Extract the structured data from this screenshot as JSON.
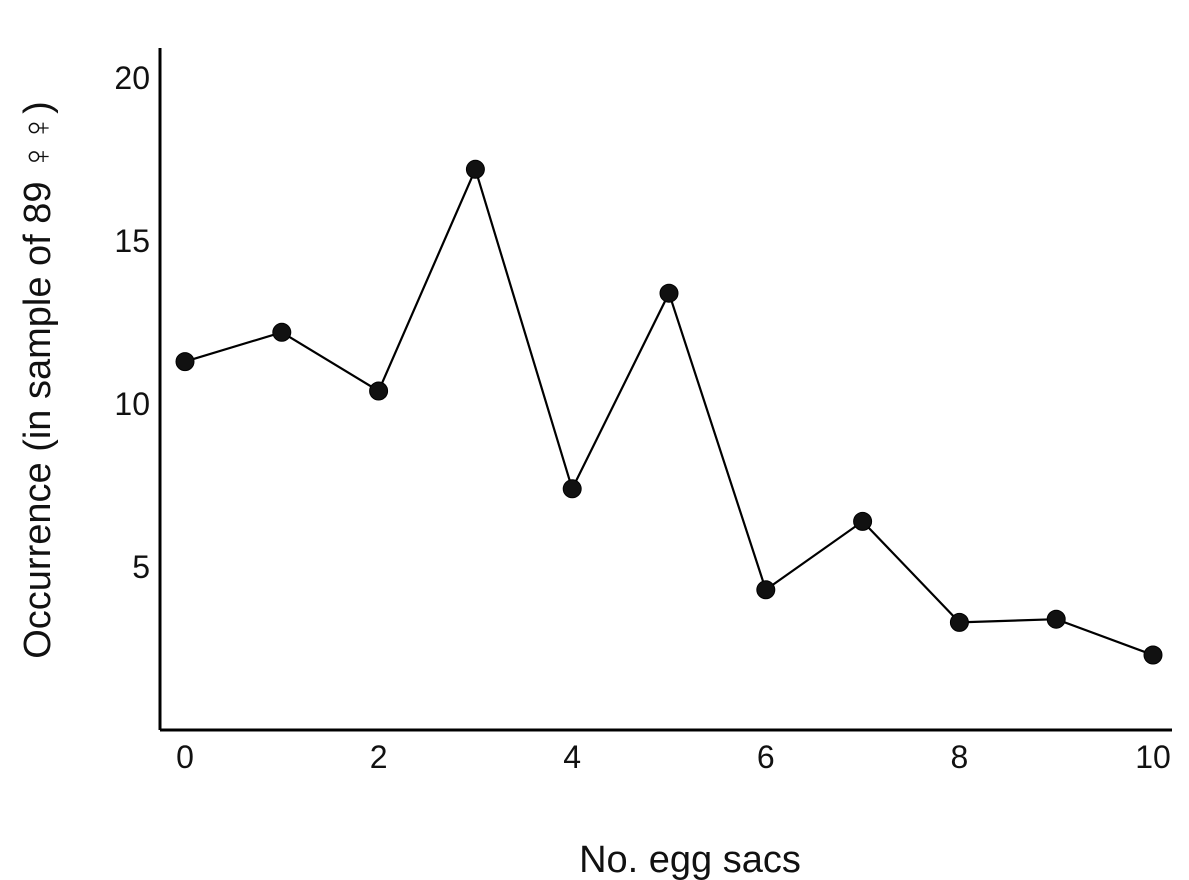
{
  "chart_data": {
    "type": "line",
    "xlabel": "No. egg sacs",
    "ylabel": "Occurrence (in sample of 89 ♀♀)",
    "xlim": [
      0,
      10
    ],
    "ylim": [
      0,
      20
    ],
    "grid": false,
    "x_ticks": [
      "0",
      "2",
      "4",
      "6",
      "8",
      "10"
    ],
    "y_ticks": [
      "5",
      "10",
      "15",
      "20"
    ],
    "series": [
      {
        "x": [
          0,
          1,
          2,
          3,
          4,
          5,
          6,
          7,
          8,
          9,
          10
        ],
        "values": [
          11.3,
          12.2,
          10.4,
          17.2,
          7.4,
          13.4,
          4.3,
          6.4,
          3.3,
          3.4,
          2.3
        ]
      }
    ]
  }
}
